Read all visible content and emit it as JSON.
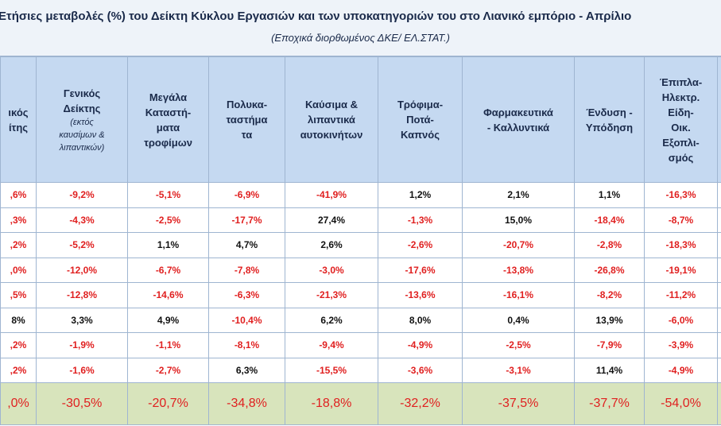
{
  "title": "Ετήσιες μεταβολές (%) του Δείκτη Κύκλου Εργασιών και των υποκατηγοριών του στο Λιανικό εμπόριο - Απρίλιο",
  "subtitle": "(Εποχικά διορθωμένος ΔΚΕ/ ΕΛ.ΣΤΑΤ.)",
  "table": {
    "columns": [
      {
        "lines": [
          "ικός",
          "ίτης"
        ]
      },
      {
        "lines": [
          "Γενικός",
          "Δείκτης"
        ],
        "note": [
          "(εκτός",
          "καυσίμων &",
          "λιπαντικών)"
        ]
      },
      {
        "lines": [
          "Μεγάλα",
          "Καταστή-",
          "ματα",
          "τροφίμων"
        ]
      },
      {
        "lines": [
          "Πολυκα-",
          "ταστήμα",
          "τα"
        ]
      },
      {
        "lines": [
          "Καύσιμα &",
          "λιπαντικά",
          "αυτοκινήτων"
        ]
      },
      {
        "lines": [
          "Τρόφιμα-",
          "Ποτά-",
          "Καπνός"
        ]
      },
      {
        "lines": [
          "Φαρμακευτικά",
          "- Καλλυντικά"
        ]
      },
      {
        "lines": [
          "Ένδυση -",
          "Υπόδηση"
        ]
      },
      {
        "lines": [
          "Έπιπλα-",
          "Ηλεκτρ.",
          "Είδη-",
          "Οικ.",
          "Εξοπλι-",
          "σμός"
        ]
      }
    ],
    "rows": [
      [
        ",6%",
        "-9,2%",
        "-5,1%",
        "-6,9%",
        "-41,9%",
        "1,2%",
        "2,1%",
        "1,1%",
        "-16,3%"
      ],
      [
        ",3%",
        "-4,3%",
        "-2,5%",
        "-17,7%",
        "27,4%",
        "-1,3%",
        "15,0%",
        "-18,4%",
        "-8,7%"
      ],
      [
        ",2%",
        "-5,2%",
        "1,1%",
        "4,7%",
        "2,6%",
        "-2,6%",
        "-20,7%",
        "-2,8%",
        "-18,3%"
      ],
      [
        ",0%",
        "-12,0%",
        "-6,7%",
        "-7,8%",
        "-3,0%",
        "-17,6%",
        "-13,8%",
        "-26,8%",
        "-19,1%"
      ],
      [
        ",5%",
        "-12,8%",
        "-14,6%",
        "-6,3%",
        "-21,3%",
        "-13,6%",
        "-16,1%",
        "-8,2%",
        "-11,2%"
      ],
      [
        "8%",
        "3,3%",
        "4,9%",
        "-10,4%",
        "6,2%",
        "8,0%",
        "0,4%",
        "13,9%",
        "-6,0%"
      ],
      [
        ",2%",
        "-1,9%",
        "-1,1%",
        "-8,1%",
        "-9,4%",
        "-4,9%",
        "-2,5%",
        "-7,9%",
        "-3,9%"
      ],
      [
        ",2%",
        "-1,6%",
        "-2,7%",
        "6,3%",
        "-15,5%",
        "-3,6%",
        "-3,1%",
        "11,4%",
        "-4,9%"
      ]
    ],
    "total": [
      ",0%",
      "-30,5%",
      "-20,7%",
      "-34,8%",
      "-18,8%",
      "-32,2%",
      "-37,5%",
      "-37,7%",
      "-54,0%"
    ]
  }
}
